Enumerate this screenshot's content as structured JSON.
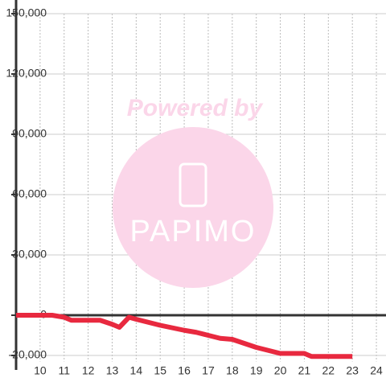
{
  "chart_data": {
    "type": "line",
    "x": [
      9,
      10.5,
      11,
      11.3,
      12.5,
      13,
      13.3,
      13.7,
      14,
      14.5,
      15,
      16,
      16.5,
      17,
      17.5,
      18,
      18.5,
      19,
      19.5,
      20,
      20.5,
      21,
      21.3,
      22,
      23
    ],
    "series": [
      {
        "name": "line",
        "color": "#e8293f",
        "values": [
          0,
          0,
          -1000,
          -2500,
          -2500,
          -4500,
          -6000,
          -1000,
          -2000,
          -3500,
          -5000,
          -7500,
          -8500,
          -10000,
          -11500,
          -12000,
          -14000,
          -16000,
          -17500,
          -19000,
          -19000,
          -19000,
          -20500,
          -20500,
          -20500
        ]
      }
    ],
    "xlim": [
      9,
      24.4
    ],
    "xticks": [
      10,
      11,
      12,
      13,
      14,
      15,
      16,
      17,
      18,
      19,
      20,
      21,
      22,
      23,
      24
    ],
    "ylim": [
      -23000,
      150000
    ],
    "yticks": [
      {
        "value": -20000,
        "label": "-20,000"
      },
      0,
      {
        "value": 30000,
        "label": "30,000"
      },
      {
        "value": 60000,
        "label": "60,000"
      },
      {
        "value": 90000,
        "label": "90,000"
      },
      {
        "value": 120000,
        "label": "120,000"
      },
      {
        "value": 150000,
        "label": "150,000"
      }
    ],
    "grid": true,
    "watermark": [
      "Powered by",
      "PAPIMO"
    ]
  }
}
